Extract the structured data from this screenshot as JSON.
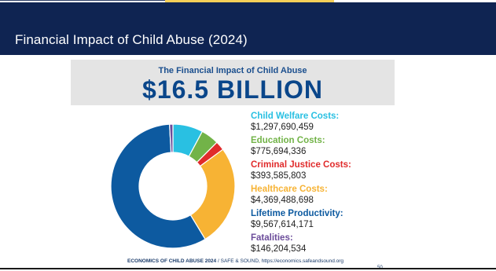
{
  "slide": {
    "title": "Financial Impact of Child Abuse (2024)"
  },
  "banner": {
    "subtitle": "The Financial Impact of Child Abuse",
    "total": "$16.5 BILLION"
  },
  "chart_data": {
    "type": "pie",
    "donut": true,
    "start_angle_deg": 0,
    "direction": "clockwise",
    "slices": [
      {
        "label": "Child Welfare Costs:",
        "value": 1297690459,
        "color": "#29c0e2"
      },
      {
        "label": "Education Costs:",
        "value": 775694336,
        "color": "#72b348"
      },
      {
        "label": "Criminal Justice Costs:",
        "value": 393585803,
        "color": "#e02b2b"
      },
      {
        "label": "Healthcare Costs:",
        "value": 4369488698,
        "color": "#f7b334"
      },
      {
        "label": "Lifetime Productivity:",
        "value": 9567614171,
        "color": "#0d5aa0"
      },
      {
        "label": "Fatalities:",
        "value": 146204534,
        "color": "#6b4c9a"
      }
    ]
  },
  "legend": [
    {
      "label": "Child Welfare Costs:",
      "value": "$1,297,690,459",
      "color": "#29c0e2"
    },
    {
      "label": "Education Costs:",
      "value": "$775,694,336",
      "color": "#72b348"
    },
    {
      "label": "Criminal Justice Costs:",
      "value": "$393,585,803",
      "color": "#e02b2b"
    },
    {
      "label": "Healthcare Costs:",
      "value": "$4,369,488,698",
      "color": "#f7b334"
    },
    {
      "label": "Lifetime Productivity:",
      "value": "$9,567,614,171",
      "color": "#0d5aa0"
    },
    {
      "label": "Fatalities:",
      "value": "$146,204,534",
      "color": "#6b4c9a"
    }
  ],
  "footer": {
    "bold": "ECONOMICS OF CHILD ABUSE 2024",
    "separator": "/",
    "rest": "SAFE & SOUND, https://economics.safeandsound.org"
  },
  "page_number": "50"
}
